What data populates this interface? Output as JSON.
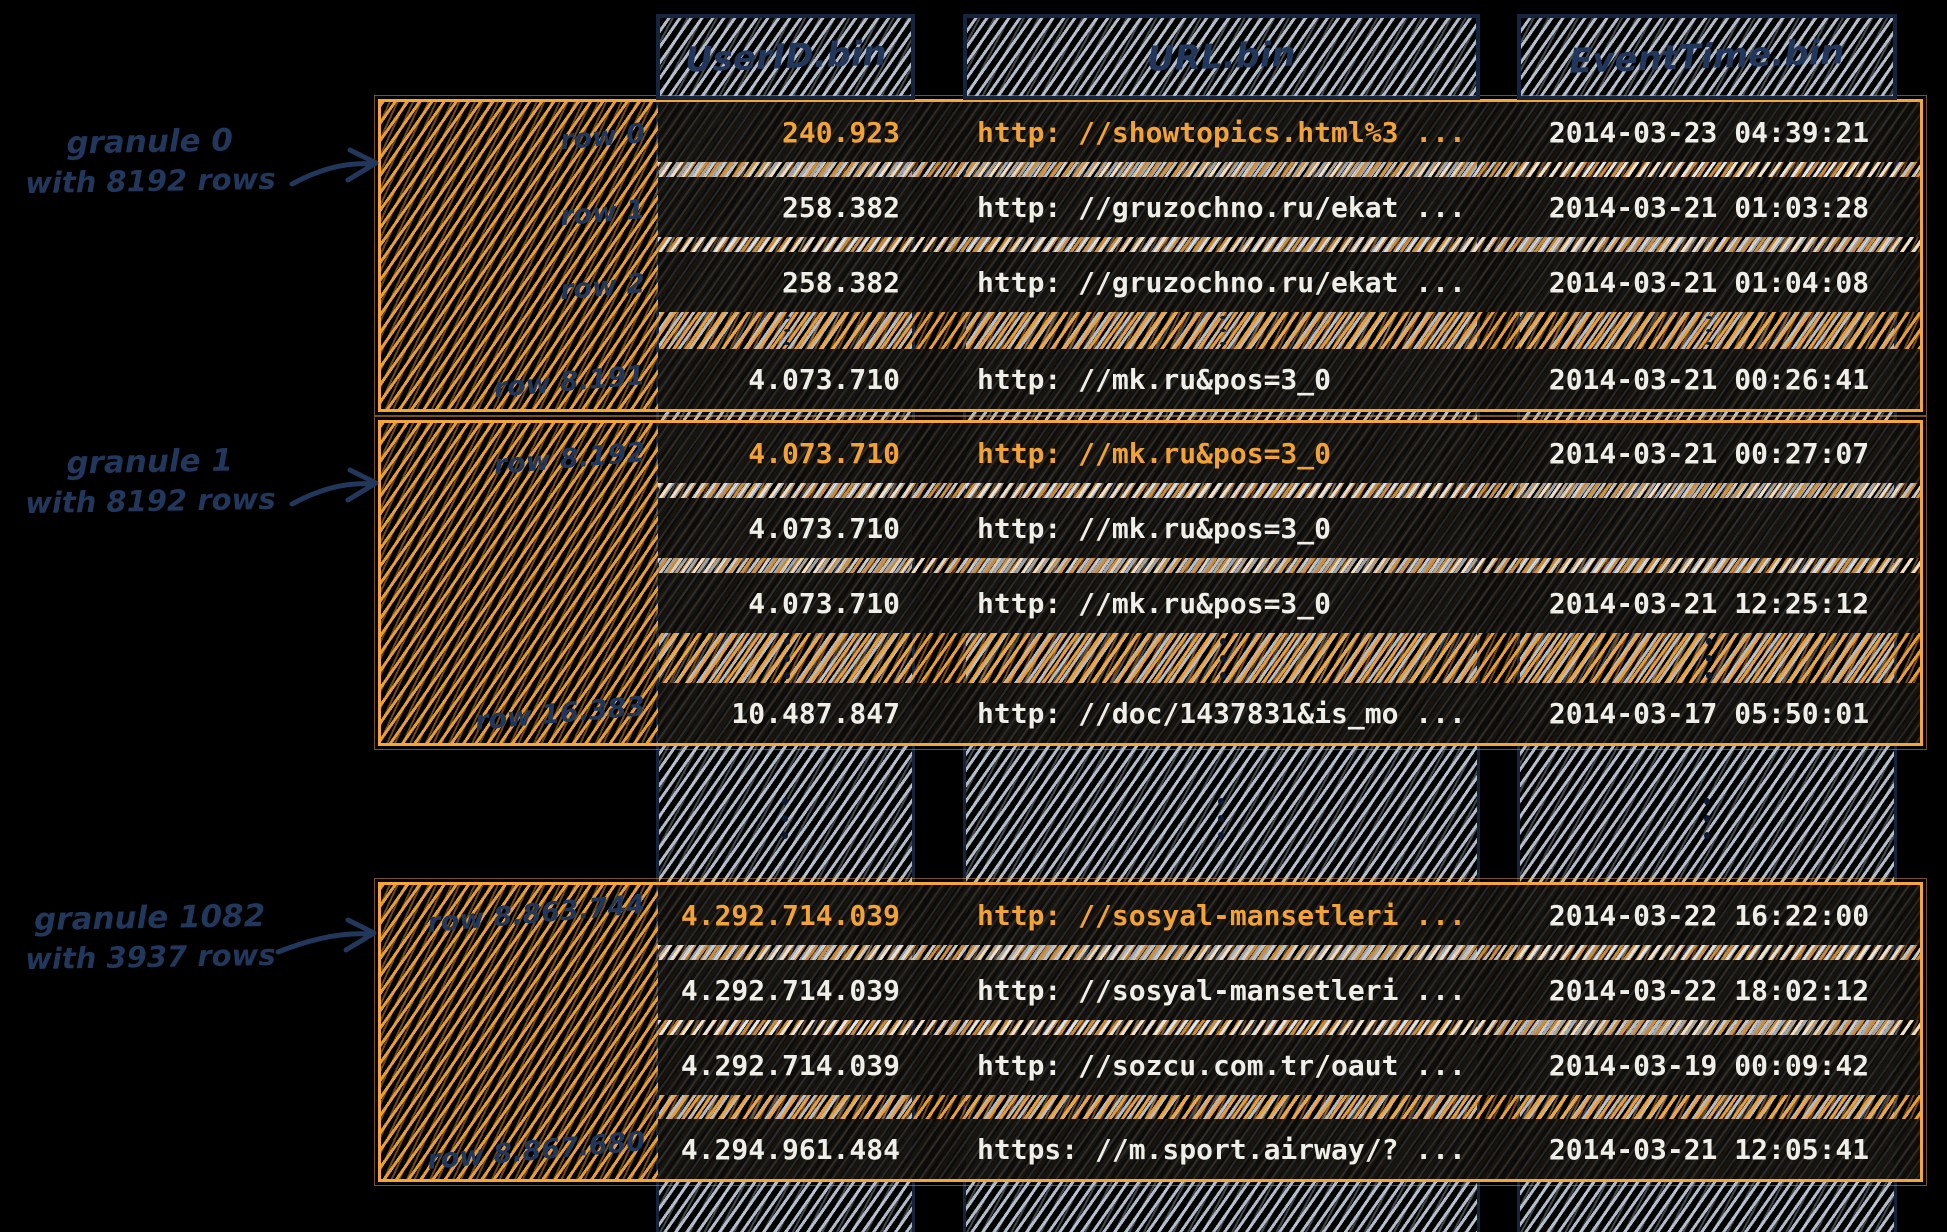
{
  "columns": [
    {
      "label": "UserID.bin"
    },
    {
      "label": "URL.bin"
    },
    {
      "label": "EventTime.bin"
    }
  ],
  "annotations": [
    {
      "line1": "granule 0",
      "line2": "with 8192 rows"
    },
    {
      "line1": "granule 1",
      "line2": "with 8192 rows"
    },
    {
      "line1": "granule 1082",
      "line2": "with 3937 rows"
    }
  ],
  "granules": [
    {
      "name": "granule 0",
      "rows": [
        {
          "label": "row 0",
          "user_id": "240.923",
          "url": "http: //showtopics.html%3 ...",
          "event_time": "2014-03-23 04:39:21",
          "highlight": true
        },
        {
          "label": "row 1",
          "user_id": "258.382",
          "url": "http: //gruzochno.ru/ekat ...",
          "event_time": "2014-03-21 01:03:28",
          "highlight": false
        },
        {
          "label": "row 2",
          "user_id": "258.382",
          "url": "http: //gruzochno.ru/ekat ...",
          "event_time": "2014-03-21 01:04:08",
          "highlight": false
        },
        {
          "label": "row 8.191",
          "user_id": "4.073.710",
          "url": "http: //mk.ru&pos=3_0",
          "event_time": "2014-03-21 00:26:41",
          "highlight": false
        }
      ]
    },
    {
      "name": "granule 1",
      "rows": [
        {
          "label": "row 8.192",
          "user_id": "4.073.710",
          "url": "http: //mk.ru&pos=3_0",
          "event_time": "2014-03-21 00:27:07",
          "highlight": true
        },
        {
          "label": "",
          "user_id": "4.073.710",
          "url": "http: //mk.ru&pos=3_0",
          "event_time": "",
          "highlight": false
        },
        {
          "label": "",
          "user_id": "4.073.710",
          "url": "http: //mk.ru&pos=3_0",
          "event_time": "2014-03-21 12:25:12",
          "highlight": false
        },
        {
          "label": "row 16.383",
          "user_id": "10.487.847",
          "url": "http: //doc/1437831&is_mo ...",
          "event_time": "2014-03-17 05:50:01",
          "highlight": false
        }
      ]
    },
    {
      "name": "granule 1082",
      "rows": [
        {
          "label": "row 8.863.744",
          "user_id": "4.292.714.039",
          "url": "http: //sosyal-mansetleri ...",
          "event_time": "2014-03-22 16:22:00",
          "highlight": true
        },
        {
          "label": "",
          "user_id": "4.292.714.039",
          "url": "http: //sosyal-mansetleri ...",
          "event_time": "2014-03-22 18:02:12",
          "highlight": false
        },
        {
          "label": "",
          "user_id": "4.292.714.039",
          "url": "http: //sozcu.com.tr/oaut ...",
          "event_time": "2014-03-19 00:09:42",
          "highlight": false
        },
        {
          "label": "row 8.867.680",
          "user_id": "4.294.961.484",
          "url": "https: //m.sport.airway/? ...",
          "event_time": "2014-03-21 12:05:41",
          "highlight": false
        }
      ]
    }
  ],
  "colors": {
    "accent_orange": "#F5A53A",
    "highlight_text": "#F2A338",
    "ink_navy": "#22375C",
    "hatch_light": "#CBD5E1",
    "data_text": "#EFEEE8",
    "background": "#000000"
  }
}
